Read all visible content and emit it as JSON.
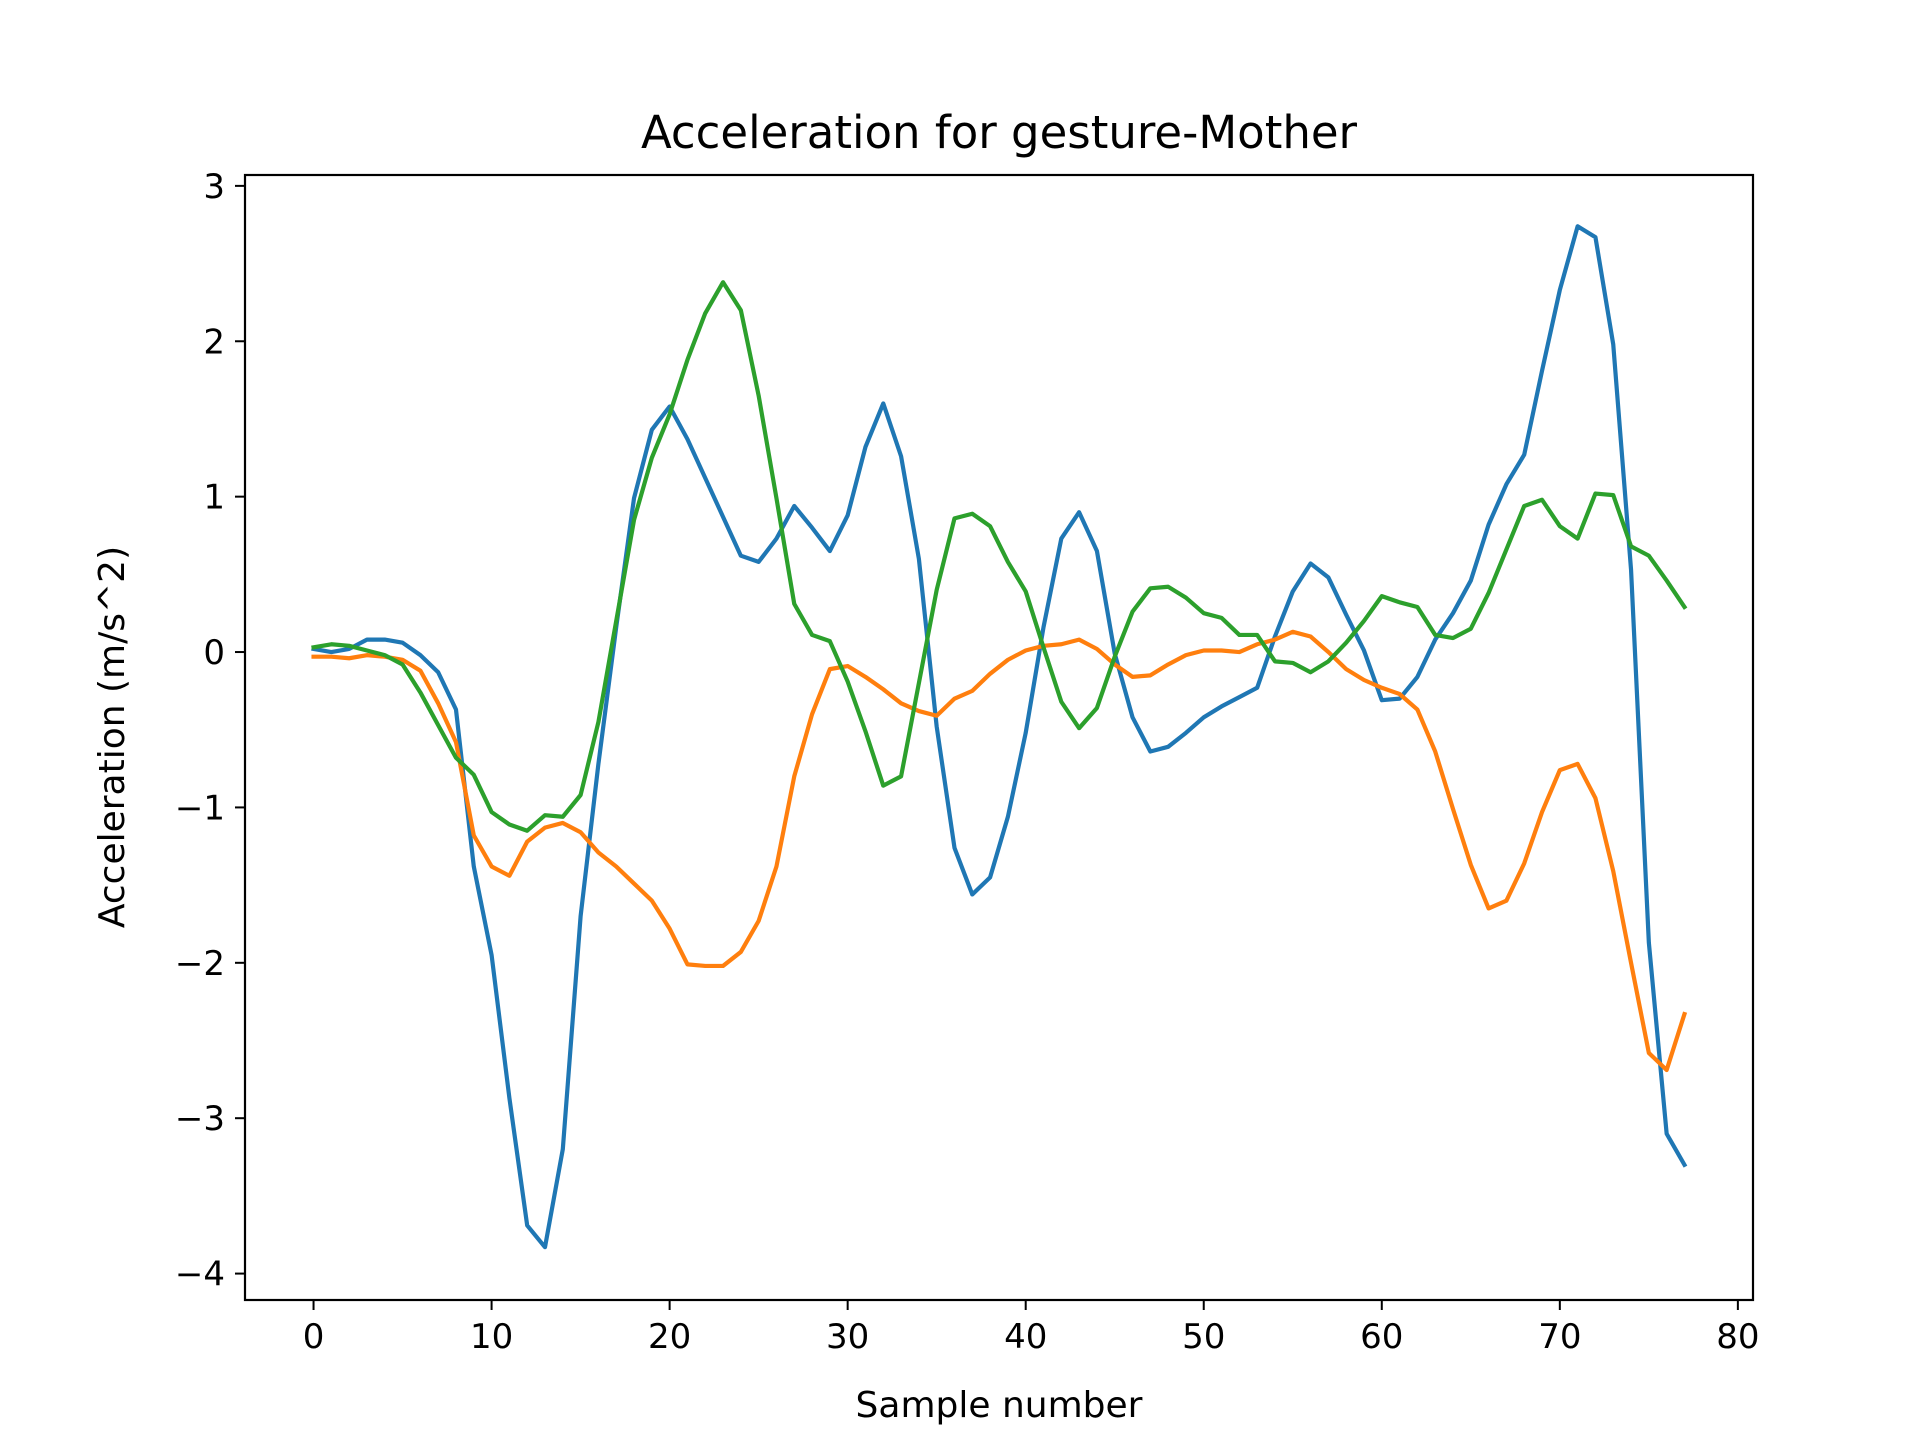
{
  "chart_data": {
    "type": "line",
    "title": "Acceleration for gesture-Mother",
    "xlabel": "Sample number",
    "ylabel": "Acceleration (m/s^2)",
    "xlim": [
      -3.85,
      80.85
    ],
    "ylim": [
      -4.17,
      3.07
    ],
    "xticks": [
      0,
      10,
      20,
      30,
      40,
      50,
      60,
      70,
      80
    ],
    "xtick_labels": [
      "0",
      "10",
      "20",
      "30",
      "40",
      "50",
      "60",
      "70",
      "80"
    ],
    "yticks": [
      3,
      2,
      1,
      0,
      -1,
      -2,
      -3,
      -4
    ],
    "ytick_labels": [
      "3",
      "2",
      "1",
      "0",
      "−1",
      "−2",
      "−3",
      "−4"
    ],
    "grid": false,
    "legend": "none",
    "series": [
      {
        "color": "#1f77b4",
        "values": [
          0.02,
          0.0,
          0.02,
          0.08,
          0.08,
          0.06,
          -0.02,
          -0.13,
          -0.37,
          -1.38,
          -1.95,
          -2.87,
          -3.69,
          -3.83,
          -3.2,
          -1.7,
          -0.72,
          0.16,
          0.99,
          1.43,
          1.58,
          1.37,
          1.12,
          0.87,
          0.62,
          0.58,
          0.73,
          0.94,
          0.8,
          0.65,
          0.88,
          1.32,
          1.6,
          1.26,
          0.6,
          -0.48,
          -1.26,
          -1.56,
          -1.45,
          -1.06,
          -0.52,
          0.16,
          0.73,
          0.9,
          0.65,
          -0.01,
          -0.42,
          -0.64,
          -0.61,
          -0.52,
          -0.42,
          -0.35,
          -0.29,
          -0.23,
          0.1,
          0.39,
          0.57,
          0.48,
          0.24,
          0.01,
          -0.31,
          -0.3,
          -0.16,
          0.08,
          0.25,
          0.46,
          0.82,
          1.08,
          1.27,
          1.81,
          2.33,
          2.74,
          2.67,
          1.98,
          0.53,
          -1.87,
          -3.1,
          -3.3
        ]
      },
      {
        "color": "#ff7f0e",
        "values": [
          -0.03,
          -0.03,
          -0.04,
          -0.02,
          -0.03,
          -0.05,
          -0.12,
          -0.33,
          -0.58,
          -1.18,
          -1.38,
          -1.44,
          -1.22,
          -1.13,
          -1.1,
          -1.16,
          -1.29,
          -1.38,
          -1.49,
          -1.6,
          -1.78,
          -2.01,
          -2.02,
          -2.02,
          -1.93,
          -1.73,
          -1.38,
          -0.8,
          -0.4,
          -0.11,
          -0.09,
          -0.16,
          -0.24,
          -0.33,
          -0.38,
          -0.41,
          -0.3,
          -0.25,
          -0.14,
          -0.05,
          0.01,
          0.04,
          0.05,
          0.08,
          0.02,
          -0.08,
          -0.16,
          -0.15,
          -0.08,
          -0.02,
          0.01,
          0.01,
          0.0,
          0.05,
          0.08,
          0.13,
          0.1,
          0.0,
          -0.11,
          -0.18,
          -0.23,
          -0.27,
          -0.37,
          -0.64,
          -1.01,
          -1.37,
          -1.65,
          -1.6,
          -1.36,
          -1.03,
          -0.76,
          -0.72,
          -0.94,
          -1.41,
          -2.0,
          -2.58,
          -2.69,
          -2.33
        ]
      },
      {
        "color": "#2ca02c",
        "values": [
          0.03,
          0.05,
          0.04,
          0.01,
          -0.02,
          -0.08,
          -0.26,
          -0.47,
          -0.68,
          -0.79,
          -1.03,
          -1.11,
          -1.15,
          -1.05,
          -1.06,
          -0.92,
          -0.45,
          0.2,
          0.85,
          1.25,
          1.53,
          1.88,
          2.18,
          2.38,
          2.2,
          1.65,
          0.99,
          0.31,
          0.11,
          0.07,
          -0.19,
          -0.51,
          -0.86,
          -0.8,
          -0.2,
          0.4,
          0.86,
          0.89,
          0.81,
          0.58,
          0.39,
          0.03,
          -0.32,
          -0.49,
          -0.36,
          -0.03,
          0.26,
          0.41,
          0.42,
          0.35,
          0.25,
          0.22,
          0.11,
          0.11,
          -0.06,
          -0.07,
          -0.13,
          -0.06,
          0.06,
          0.2,
          0.36,
          0.32,
          0.29,
          0.11,
          0.09,
          0.15,
          0.38,
          0.66,
          0.94,
          0.98,
          0.81,
          0.73,
          1.02,
          1.01,
          0.68,
          0.62,
          0.46,
          0.29
        ]
      }
    ]
  }
}
